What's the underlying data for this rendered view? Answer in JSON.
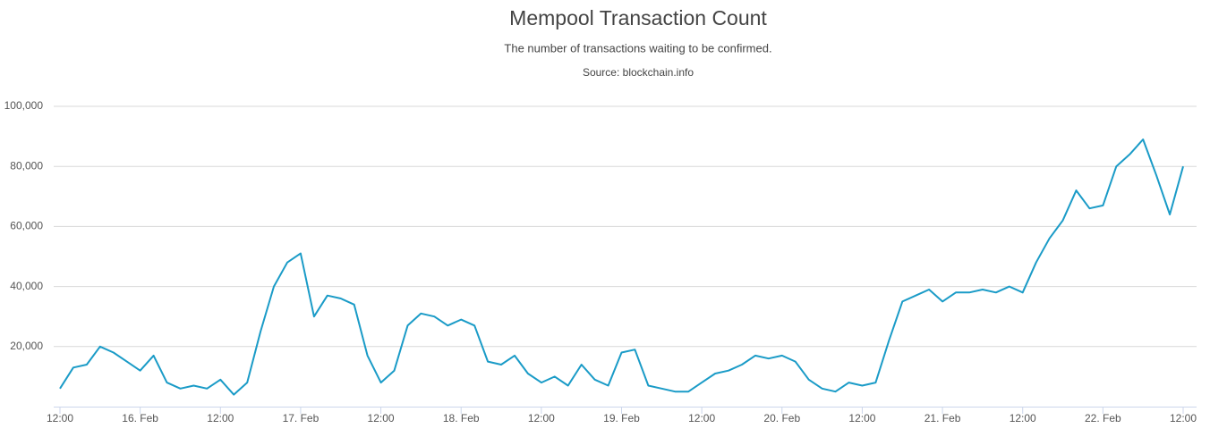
{
  "chart_data": {
    "type": "line",
    "title": "Mempool Transaction Count",
    "subtitle": "The number of transactions waiting to be confirmed.",
    "source": "Source: blockchain.info",
    "categories": [
      "12:00",
      null,
      null,
      null,
      null,
      null,
      "16. Feb",
      null,
      null,
      null,
      null,
      null,
      "12:00",
      null,
      null,
      null,
      null,
      null,
      "17. Feb",
      null,
      null,
      null,
      null,
      null,
      "12:00",
      null,
      null,
      null,
      null,
      null,
      "18. Feb",
      null,
      null,
      null,
      null,
      null,
      "12:00",
      null,
      null,
      null,
      null,
      null,
      "19. Feb",
      null,
      null,
      null,
      null,
      null,
      "12:00",
      null,
      null,
      null,
      null,
      null,
      "20. Feb",
      null,
      null,
      null,
      null,
      null,
      "12:00",
      null,
      null,
      null,
      null,
      null,
      "21. Feb",
      null,
      null,
      null,
      null,
      null,
      "12:00",
      null,
      null,
      null,
      null,
      null,
      "22. Feb",
      null,
      null,
      null,
      null,
      null,
      "12:00"
    ],
    "series": [
      {
        "color": "#1a9bc7",
        "values": [
          6000,
          13000,
          14000,
          20000,
          18000,
          15000,
          12000,
          17000,
          8000,
          6000,
          7000,
          6000,
          9000,
          4000,
          8000,
          25000,
          40000,
          48000,
          51000,
          30000,
          37000,
          36000,
          34000,
          17000,
          8000,
          12000,
          27000,
          31000,
          30000,
          27000,
          29000,
          27000,
          15000,
          14000,
          17000,
          11000,
          8000,
          10000,
          7000,
          14000,
          9000,
          7000,
          18000,
          19000,
          7000,
          6000,
          5000,
          5000,
          8000,
          11000,
          12000,
          14000,
          17000,
          16000,
          17000,
          15000,
          9000,
          6000,
          5000,
          8000,
          7000,
          8000,
          22000,
          35000,
          37000,
          39000,
          35000,
          38000,
          38000,
          39000,
          38000,
          40000,
          38000,
          48000,
          56000,
          62000,
          72000,
          66000,
          67000,
          80000,
          84000,
          89000,
          77000,
          64000,
          80000
        ]
      }
    ],
    "ylim": [
      0,
      100000
    ],
    "yticks": [
      {
        "value": 20000,
        "label": "20,000"
      },
      {
        "value": 40000,
        "label": "40,000"
      },
      {
        "value": 60000,
        "label": "60,000"
      },
      {
        "value": 80000,
        "label": "80,000"
      },
      {
        "value": 100000,
        "label": "100,000"
      }
    ],
    "grid": true
  }
}
